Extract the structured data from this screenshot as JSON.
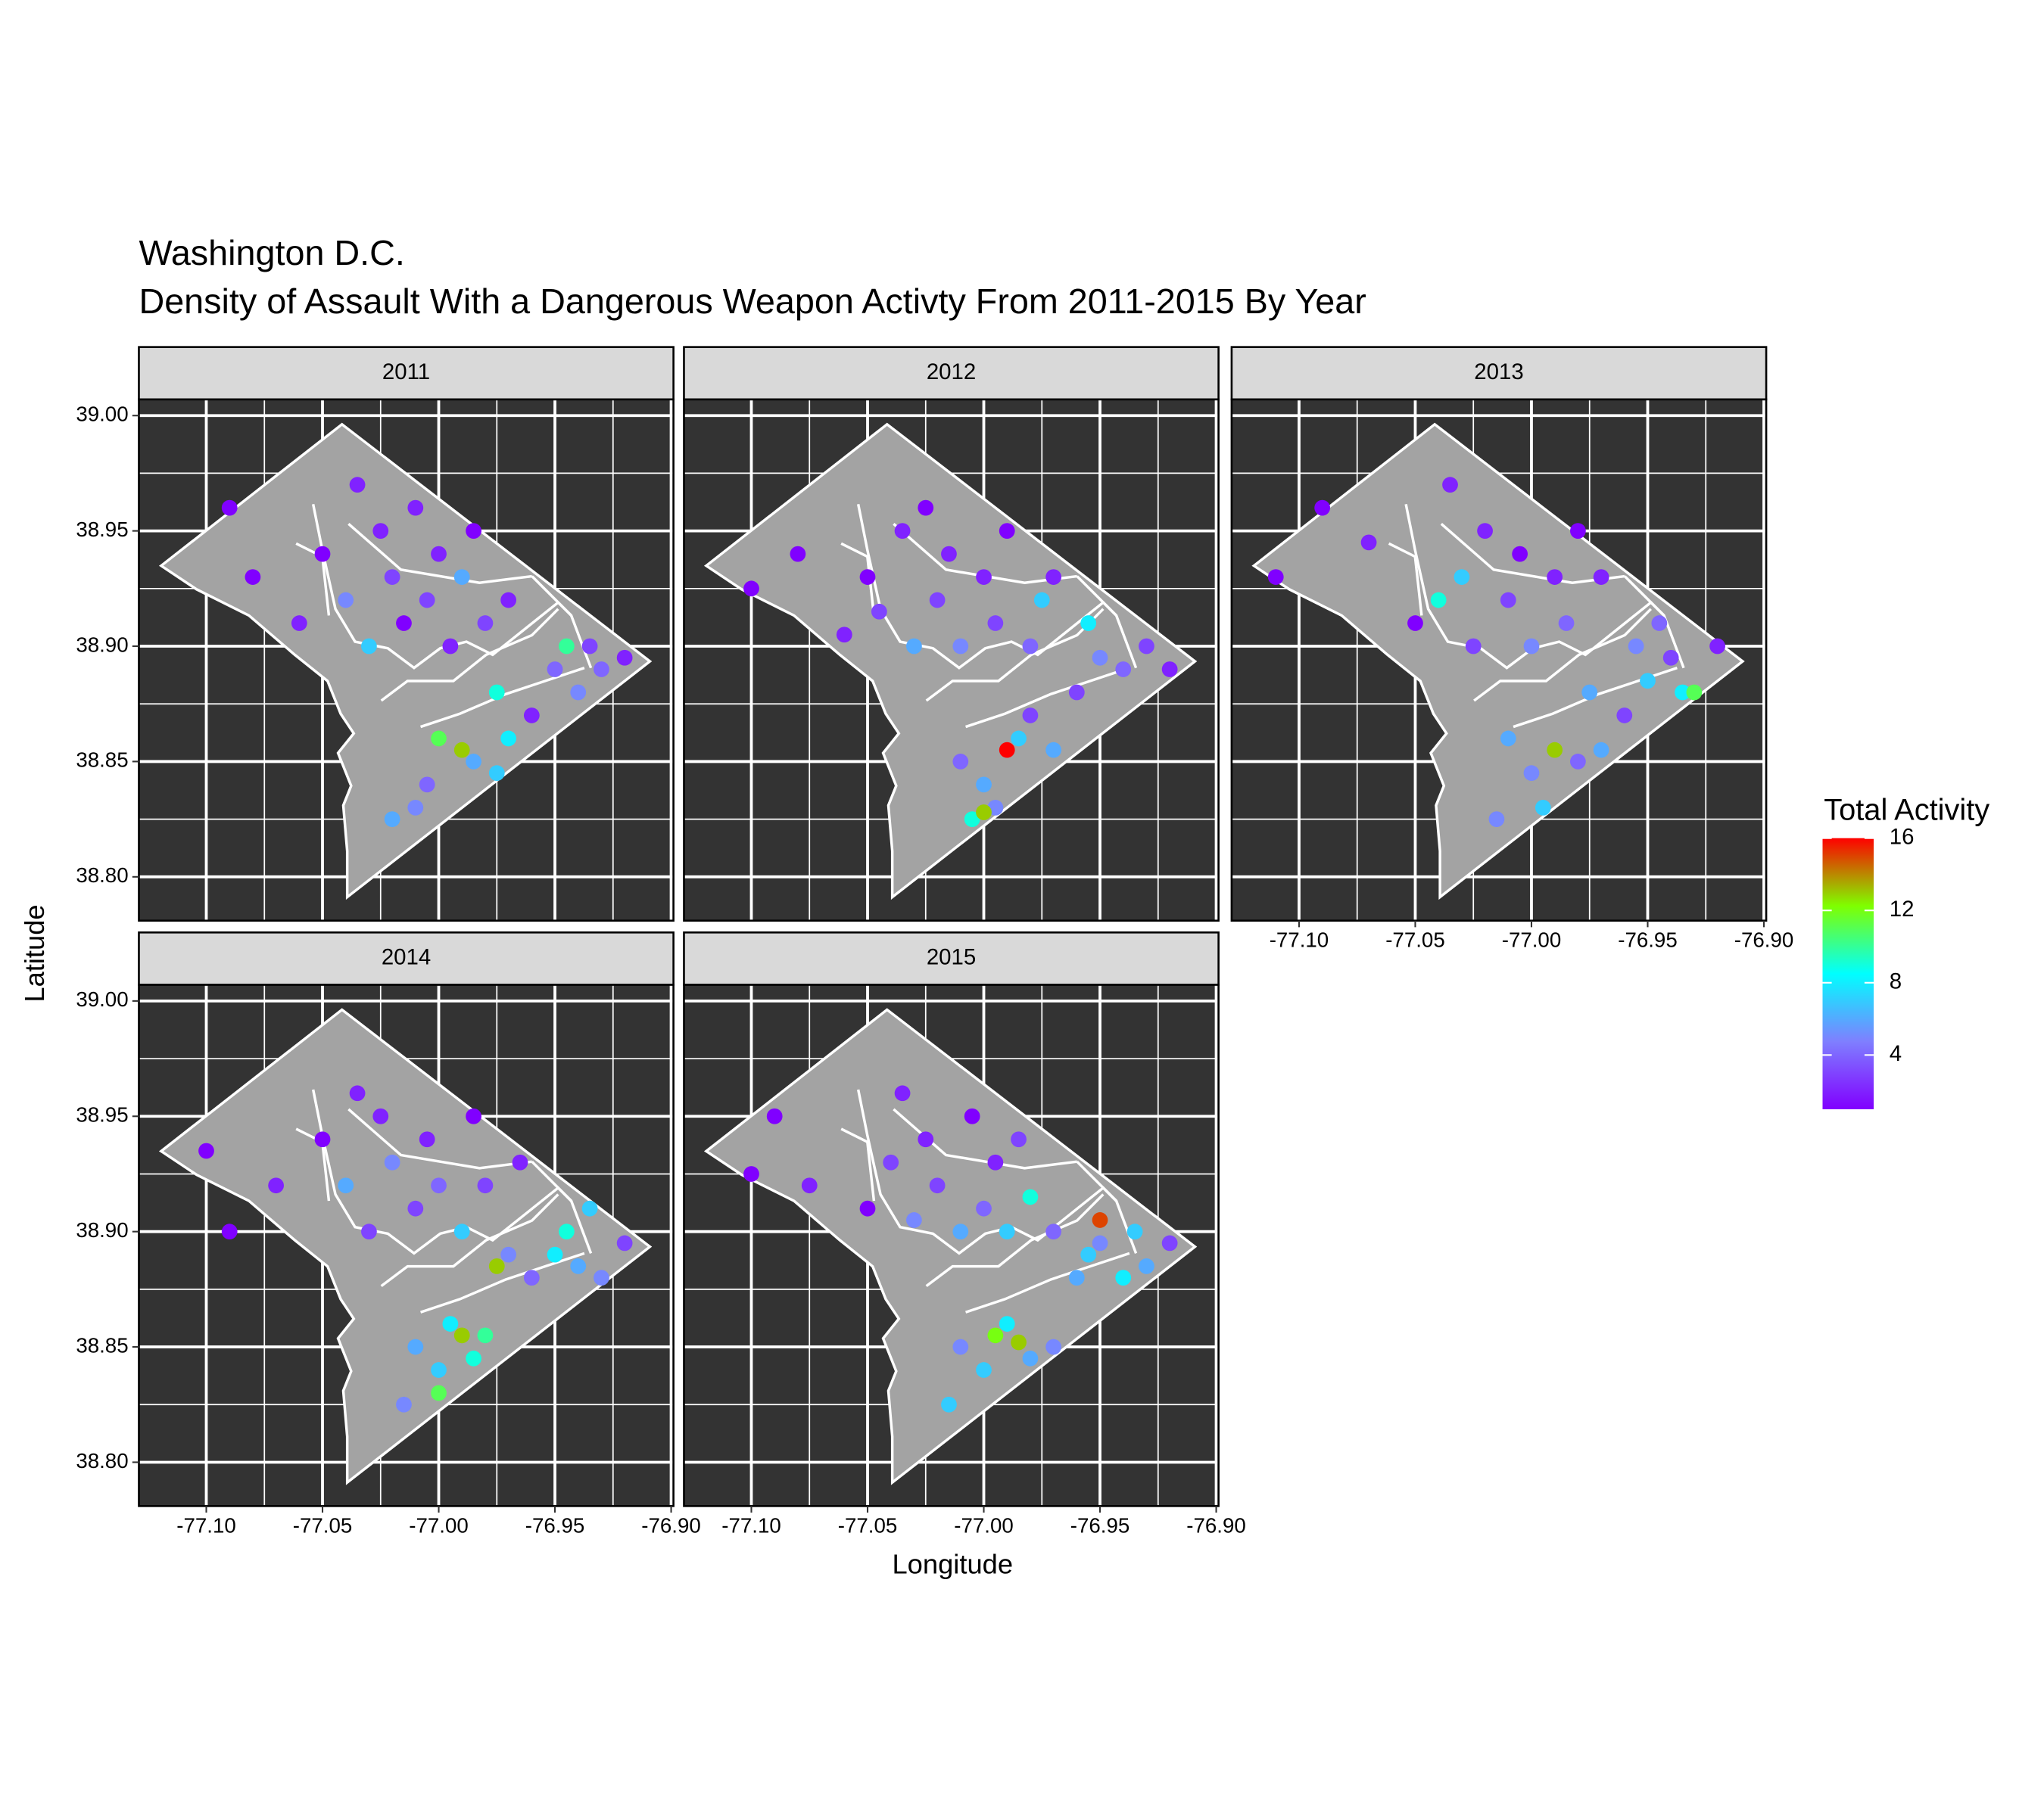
{
  "chart_data": {
    "type": "scatter",
    "title": "Washington D.C.",
    "subtitle": "Density of Assault With a Dangerous Weapon Activty From 2011-2015 By Year",
    "x_label": "Longitude",
    "y_label": "Latitude",
    "xlim": [
      -77.129,
      -76.899
    ],
    "ylim": [
      38.781,
      39.007
    ],
    "xticks": [
      {
        "value": -77.1,
        "label": "-77.10"
      },
      -77.05,
      {
        "value": -77.0,
        "label": "-77.00"
      },
      -76.95,
      {
        "value": -76.9,
        "label": "-76.90"
      }
    ],
    "yticks": [
      {
        "value": 38.8,
        "label": "38.80"
      },
      38.85,
      {
        "value": 38.9,
        "label": "38.90"
      },
      38.95,
      {
        "value": 39.0,
        "label": "39.00"
      }
    ],
    "grid": true,
    "colorbar": {
      "title": "Total Activity",
      "lim": [
        1,
        16
      ],
      "ticks": [
        4,
        8,
        12,
        16
      ],
      "colorscale": [
        "#8000FF",
        "#7F7FFF",
        "#00FFFF",
        "#7FFF00",
        "#FF0000"
      ]
    },
    "facets": [
      {
        "title": "2011",
        "x": [
          -77.09,
          -77.08,
          -77.06,
          -77.05,
          -77.04,
          -77.035,
          -77.03,
          -77.025,
          -77.02,
          -77.015,
          -77.01,
          -77.005,
          -77.0,
          -76.995,
          -76.99,
          -76.985,
          -76.98,
          -76.975,
          -76.97,
          -76.96,
          -76.95,
          -76.945,
          -76.94,
          -76.935,
          -76.93,
          -76.92,
          -77.0,
          -76.99,
          -76.985,
          -76.975,
          -77.01,
          -77.005,
          -76.97,
          -77.02
        ],
        "y": [
          38.96,
          38.93,
          38.91,
          38.94,
          38.92,
          38.97,
          38.9,
          38.95,
          38.93,
          38.91,
          38.96,
          38.92,
          38.94,
          38.9,
          38.93,
          38.95,
          38.91,
          38.88,
          38.92,
          38.87,
          38.89,
          38.9,
          38.88,
          38.9,
          38.89,
          38.895,
          38.86,
          38.855,
          38.85,
          38.845,
          38.83,
          38.84,
          38.86,
          38.825
        ],
        "values": [
          1,
          1,
          2,
          1,
          5,
          2,
          7,
          2,
          3,
          1,
          2,
          3,
          2,
          2,
          6,
          1,
          3,
          9,
          2,
          2,
          4,
          10,
          5,
          3,
          4,
          2,
          11,
          13,
          6,
          7,
          5,
          4,
          8,
          6
        ]
      },
      {
        "title": "2012",
        "x": [
          -77.1,
          -77.08,
          -77.06,
          -77.05,
          -77.045,
          -77.035,
          -77.03,
          -77.025,
          -77.02,
          -77.015,
          -77.01,
          -77.0,
          -76.995,
          -76.99,
          -76.98,
          -76.975,
          -76.97,
          -76.96,
          -76.955,
          -76.95,
          -76.94,
          -76.93,
          -76.92,
          -77.01,
          -77.0,
          -76.995,
          -76.985,
          -76.98,
          -77.005,
          -76.97,
          -77.0,
          -76.99
        ],
        "y": [
          38.925,
          38.94,
          38.905,
          38.93,
          38.915,
          38.95,
          38.9,
          38.96,
          38.92,
          38.94,
          38.9,
          38.93,
          38.91,
          38.95,
          38.9,
          38.92,
          38.93,
          38.88,
          38.91,
          38.895,
          38.89,
          38.9,
          38.89,
          38.85,
          38.84,
          38.83,
          38.86,
          38.87,
          38.825,
          38.855,
          38.828,
          38.855
        ],
        "values": [
          1,
          1,
          2,
          1,
          3,
          2,
          6,
          1,
          3,
          2,
          5,
          2,
          3,
          1,
          4,
          7,
          2,
          3,
          8,
          5,
          4,
          3,
          2,
          4,
          6,
          5,
          7,
          3,
          9,
          6,
          13,
          16
        ]
      },
      {
        "title": "2013",
        "x": [
          -77.11,
          -77.09,
          -77.07,
          -77.05,
          -77.04,
          -77.035,
          -77.03,
          -77.025,
          -77.02,
          -77.01,
          -77.005,
          -77.0,
          -76.99,
          -76.985,
          -76.98,
          -76.975,
          -76.97,
          -76.96,
          -76.955,
          -76.95,
          -76.945,
          -76.94,
          -76.935,
          -76.92,
          -77.01,
          -77.0,
          -76.995,
          -76.98,
          -76.97,
          -77.015,
          -76.99,
          -76.93
        ],
        "y": [
          38.93,
          38.96,
          38.945,
          38.91,
          38.92,
          38.97,
          38.93,
          38.9,
          38.95,
          38.92,
          38.94,
          38.9,
          38.93,
          38.91,
          38.95,
          38.88,
          38.93,
          38.87,
          38.9,
          38.885,
          38.91,
          38.895,
          38.88,
          38.9,
          38.86,
          38.845,
          38.83,
          38.85,
          38.855,
          38.825,
          38.855,
          38.88
        ],
        "values": [
          1,
          1,
          2,
          1,
          9,
          2,
          7,
          3,
          2,
          3,
          1,
          5,
          2,
          4,
          1,
          6,
          2,
          3,
          5,
          7,
          4,
          3,
          8,
          2,
          6,
          5,
          7,
          4,
          6,
          5,
          13,
          11
        ]
      },
      {
        "title": "2014",
        "x": [
          -77.1,
          -77.09,
          -77.07,
          -77.05,
          -77.04,
          -77.035,
          -77.03,
          -77.025,
          -77.02,
          -77.01,
          -77.005,
          -77.0,
          -76.99,
          -76.985,
          -76.98,
          -76.97,
          -76.965,
          -76.96,
          -76.95,
          -76.945,
          -76.94,
          -76.935,
          -76.93,
          -76.92,
          -77.01,
          -77.0,
          -76.995,
          -76.985,
          -76.98,
          -77.015,
          -76.975,
          -76.99,
          -77.0
        ],
        "y": [
          38.935,
          38.9,
          38.92,
          38.94,
          38.92,
          38.96,
          38.9,
          38.95,
          38.93,
          38.91,
          38.94,
          38.92,
          38.9,
          38.95,
          38.92,
          38.89,
          38.93,
          38.88,
          38.89,
          38.9,
          38.885,
          38.91,
          38.88,
          38.895,
          38.85,
          38.84,
          38.86,
          38.845,
          38.855,
          38.825,
          38.885,
          38.855,
          38.83
        ],
        "values": [
          1,
          1,
          2,
          1,
          6,
          2,
          3,
          2,
          5,
          3,
          2,
          4,
          7,
          1,
          3,
          5,
          2,
          4,
          8,
          9,
          6,
          7,
          5,
          3,
          6,
          7,
          8,
          9,
          10,
          5,
          13,
          13,
          11
        ]
      },
      {
        "title": "2015",
        "x": [
          -77.1,
          -77.09,
          -77.075,
          -77.05,
          -77.04,
          -77.035,
          -77.03,
          -77.025,
          -77.02,
          -77.01,
          -77.005,
          -77.0,
          -76.995,
          -76.99,
          -76.985,
          -76.98,
          -76.97,
          -76.96,
          -76.955,
          -76.95,
          -76.94,
          -76.935,
          -76.93,
          -76.92,
          -77.01,
          -77.0,
          -76.99,
          -76.98,
          -76.97,
          -77.015,
          -76.95,
          -76.985,
          -76.995
        ],
        "y": [
          38.925,
          38.95,
          38.92,
          38.91,
          38.93,
          38.96,
          38.905,
          38.94,
          38.92,
          38.9,
          38.95,
          38.91,
          38.93,
          38.9,
          38.94,
          38.915,
          38.9,
          38.88,
          38.89,
          38.895,
          38.88,
          38.9,
          38.885,
          38.895,
          38.85,
          38.84,
          38.86,
          38.845,
          38.85,
          38.825,
          38.905,
          38.852,
          38.855
        ],
        "values": [
          1,
          1,
          2,
          1,
          3,
          2,
          5,
          2,
          3,
          6,
          1,
          4,
          2,
          7,
          3,
          9,
          4,
          6,
          7,
          5,
          8,
          7,
          6,
          3,
          5,
          7,
          8,
          6,
          5,
          7,
          15,
          13,
          12
        ]
      }
    ]
  }
}
